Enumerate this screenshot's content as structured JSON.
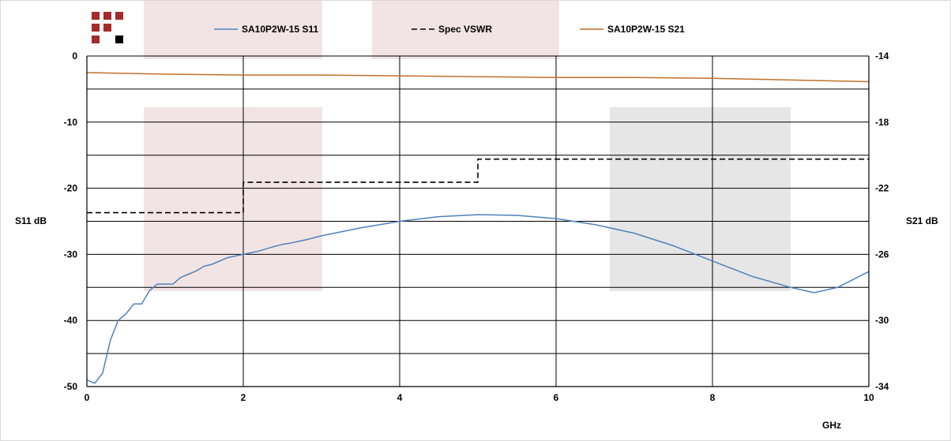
{
  "chart_data": {
    "type": "line",
    "xlabel": "GHz",
    "ylabel_left": "S11 dB",
    "ylabel_right": "S21 dB",
    "xlim": [
      0,
      10
    ],
    "ylim_left": [
      -50,
      0
    ],
    "ylim_right": [
      -34,
      -14
    ],
    "x_ticks": [
      "0",
      "2",
      "4",
      "6",
      "8",
      "10"
    ],
    "y_ticks_left": [
      "0",
      "-10",
      "-20",
      "-30",
      "-40",
      "-50"
    ],
    "y_ticks_right": [
      "-14",
      "-18",
      "-22",
      "-26",
      "-30",
      "-34"
    ],
    "grid": true,
    "legend_position": "top",
    "series": [
      {
        "name": "SA10P2W-15 S11",
        "axis": "left",
        "color": "#4f81bd",
        "style": "solid",
        "x": [
          0,
          0.1,
          0.2,
          0.3,
          0.4,
          0.5,
          0.6,
          0.7,
          0.8,
          0.9,
          1.0,
          1.1,
          1.2,
          1.3,
          1.4,
          1.5,
          1.6,
          1.7,
          1.8,
          2.0,
          2.2,
          2.4,
          2.5,
          2.6,
          2.8,
          3.0,
          3.5,
          4.0,
          4.5,
          5.0,
          5.5,
          6.0,
          6.5,
          7.0,
          7.5,
          8.0,
          8.5,
          9.0,
          9.3,
          9.6,
          10.0
        ],
        "y": [
          -49,
          -49.5,
          -48,
          -43,
          -40,
          -39,
          -37.5,
          -37.5,
          -35.5,
          -34.5,
          -34.5,
          -34.5,
          -33.5,
          -33,
          -32.5,
          -31.8,
          -31.5,
          -31,
          -30.5,
          -30,
          -29.5,
          -28.8,
          -28.5,
          -28.3,
          -27.8,
          -27.2,
          -26,
          -25,
          -24.3,
          -24,
          -24.1,
          -24.6,
          -25.5,
          -26.8,
          -28.7,
          -31,
          -33.3,
          -35,
          -35.8,
          -35,
          -32.6
        ]
      },
      {
        "name": "Spec VSWR",
        "axis": "left",
        "color": "#000000",
        "style": "dashed",
        "x": [
          0,
          2.0,
          2.0,
          5.0,
          5.0,
          10.0
        ],
        "y": [
          -23.7,
          -23.7,
          -19.1,
          -19.1,
          -15.6,
          -15.6
        ]
      },
      {
        "name": "SA10P2W-15 S21",
        "axis": "right",
        "color": "#c0702a",
        "style": "solid",
        "x": [
          0,
          0.5,
          1.0,
          2.0,
          3.0,
          4.0,
          5.0,
          6.0,
          7.0,
          8.0,
          9.0,
          10.0
        ],
        "y": [
          -15.0,
          -15.05,
          -15.1,
          -15.15,
          -15.15,
          -15.2,
          -15.25,
          -15.3,
          -15.3,
          -15.35,
          -15.45,
          -15.55
        ]
      }
    ],
    "legend": [
      "SA10P2W-15 S11",
      "Spec VSWR",
      "SA10P2W-15 S21"
    ]
  }
}
